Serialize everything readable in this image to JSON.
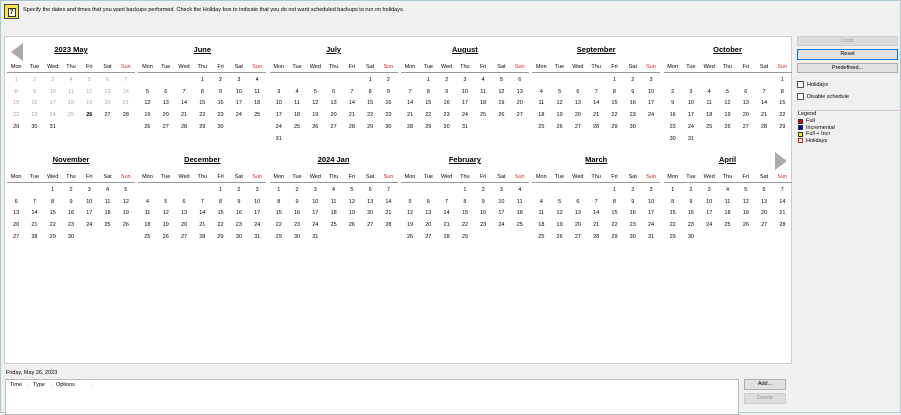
{
  "header": {
    "icon": "calendar-icon",
    "text": "Specify the dates and times that you want backups performed. Check the Holiday box to indicate that you do not want scheduled backups to run on holidays."
  },
  "weekdays": [
    "Mon",
    "Tue",
    "Wed",
    "Thu",
    "Fri",
    "Sat",
    "Sun"
  ],
  "calendar": {
    "prev_icon": "triangle-left-icon",
    "next_icon": "triangle-right-icon",
    "selected_day": 26,
    "past_through": 25,
    "months": [
      {
        "title": "2023 May",
        "first_weekday": 0,
        "days": 31
      },
      {
        "title": "June",
        "first_weekday": 3,
        "days": 30
      },
      {
        "title": "July",
        "first_weekday": 5,
        "days": 31
      },
      {
        "title": "August",
        "first_weekday": 1,
        "days": 31
      },
      {
        "title": "September",
        "first_weekday": 4,
        "days": 30
      },
      {
        "title": "October",
        "first_weekday": 6,
        "days": 31
      },
      {
        "title": "November",
        "first_weekday": 2,
        "days": 30
      },
      {
        "title": "December",
        "first_weekday": 4,
        "days": 31
      },
      {
        "title": "2024 Jan",
        "first_weekday": 0,
        "days": 31
      },
      {
        "title": "February",
        "first_weekday": 3,
        "days": 29
      },
      {
        "title": "March",
        "first_weekday": 4,
        "days": 31
      },
      {
        "title": "April",
        "first_weekday": 0,
        "days": 30
      }
    ]
  },
  "sidebar": {
    "undo": "Undo",
    "reset": "Reset",
    "predefined": "Predefined...",
    "holidays": "Holidays",
    "disable_schedule": "Disable schedule",
    "legend": {
      "title": "Legend",
      "items": [
        {
          "label": "Full",
          "color": "#e00000"
        },
        {
          "label": "Incremental",
          "color": "#0000e0"
        },
        {
          "label": "Full + Incr",
          "color": "#f0f000"
        },
        {
          "label": "Holidays",
          "color": "#ffffff"
        }
      ]
    }
  },
  "details": {
    "date": "Friday, May 26, 2023",
    "columns": [
      "Time",
      "Type",
      "Options"
    ],
    "add": "Add...",
    "delete": "Delete"
  },
  "colors": {
    "sunday": "#e02020",
    "past": "#aaaaaa"
  }
}
